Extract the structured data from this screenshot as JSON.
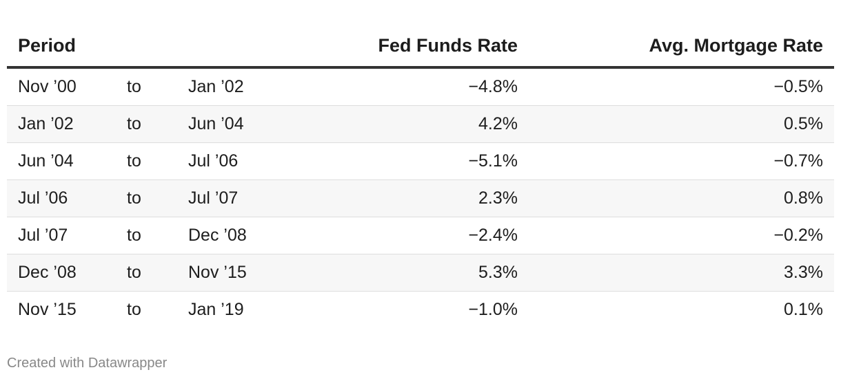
{
  "chart_data": {
    "type": "table",
    "columns": [
      "Period",
      "Fed Funds Rate",
      "Avg. Mortgage Rate"
    ],
    "rows": [
      {
        "from": "Nov ’00",
        "to_label": "to",
        "end": "Jan ’02",
        "fed_funds": "−4.8%",
        "mortgage": "−0.5%"
      },
      {
        "from": "Jan ’02",
        "to_label": "to",
        "end": "Jun ’04",
        "fed_funds": "4.2%",
        "mortgage": "0.5%"
      },
      {
        "from": "Jun ’04",
        "to_label": "to",
        "end": "Jul ’06",
        "fed_funds": "−5.1%",
        "mortgage": "−0.7%"
      },
      {
        "from": "Jul ’06",
        "to_label": "to",
        "end": "Jul ’07",
        "fed_funds": "2.3%",
        "mortgage": "0.8%"
      },
      {
        "from": "Jul ’07",
        "to_label": "to",
        "end": "Dec ’08",
        "fed_funds": "−2.4%",
        "mortgage": "−0.2%"
      },
      {
        "from": "Dec ’08",
        "to_label": "to",
        "end": "Nov ’15",
        "fed_funds": "5.3%",
        "mortgage": "3.3%"
      },
      {
        "from": "Nov ’15",
        "to_label": "to",
        "end": "Jan ’19",
        "fed_funds": "−1.0%",
        "mortgage": "0.1%"
      }
    ]
  },
  "footer": {
    "credit": "Created with Datawrapper"
  }
}
